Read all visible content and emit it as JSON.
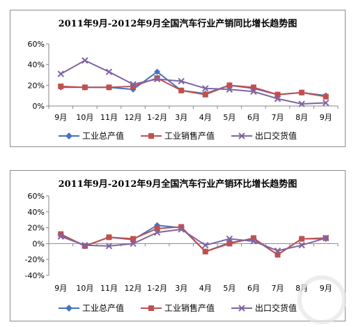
{
  "colors": {
    "series": [
      "#4472C4",
      "#C0504D",
      "#8064A2"
    ],
    "axis": "#868686",
    "grid": "#bfbfbf"
  },
  "chart_data": [
    {
      "type": "line",
      "title": "2011年9月-2012年9月全国汽车行业产销同比增长趋势图",
      "categories": [
        "9月",
        "10月",
        "11月",
        "12月",
        "1-2月",
        "3月",
        "4月",
        "5月",
        "6月",
        "7月",
        "8月",
        "9月"
      ],
      "yticks": [
        "0%",
        "20%",
        "40%",
        "60%"
      ],
      "ylim": [
        0,
        60
      ],
      "y_unit": "%",
      "grid": true,
      "legend_position": "bottom",
      "series": [
        {
          "name": "工业总产值",
          "marker": "diamond",
          "values": [
            18,
            18,
            18,
            16,
            33,
            15,
            12,
            20,
            17,
            11,
            13,
            10
          ]
        },
        {
          "name": "工业销售产值",
          "marker": "square",
          "values": [
            19,
            18,
            18,
            19,
            27,
            15,
            11,
            20,
            18,
            11,
            13,
            9
          ]
        },
        {
          "name": "出口交货值",
          "marker": "x",
          "values": [
            31,
            44,
            33,
            21,
            26,
            24,
            17,
            16,
            14,
            7,
            2,
            3
          ]
        }
      ]
    },
    {
      "type": "line",
      "title": "2011年9月-2012年9月全国汽车行业产销环比增长趋势图",
      "categories": [
        "9月",
        "10月",
        "11月",
        "12月",
        "1-2月",
        "3月",
        "4月",
        "5月",
        "6月",
        "7月",
        "8月",
        "9月"
      ],
      "yticks": [
        "-40%",
        "-20%",
        "0%",
        "20%",
        "40%",
        "60%"
      ],
      "ylim": [
        -40,
        60
      ],
      "y_unit": "%",
      "grid": true,
      "legend_position": "bottom",
      "series": [
        {
          "name": "工业总产值",
          "marker": "diamond",
          "values": [
            11,
            -3,
            8,
            5,
            23,
            20,
            -10,
            1,
            6,
            -14,
            6,
            6
          ]
        },
        {
          "name": "工业销售产值",
          "marker": "square",
          "values": [
            12,
            -3,
            8,
            6,
            19,
            21,
            -10,
            0,
            7,
            -14,
            6,
            7
          ]
        },
        {
          "name": "出口交货值",
          "marker": "x",
          "values": [
            9,
            -2,
            -3,
            0,
            14,
            18,
            -2,
            6,
            3,
            -9,
            -2,
            7
          ]
        }
      ]
    }
  ]
}
